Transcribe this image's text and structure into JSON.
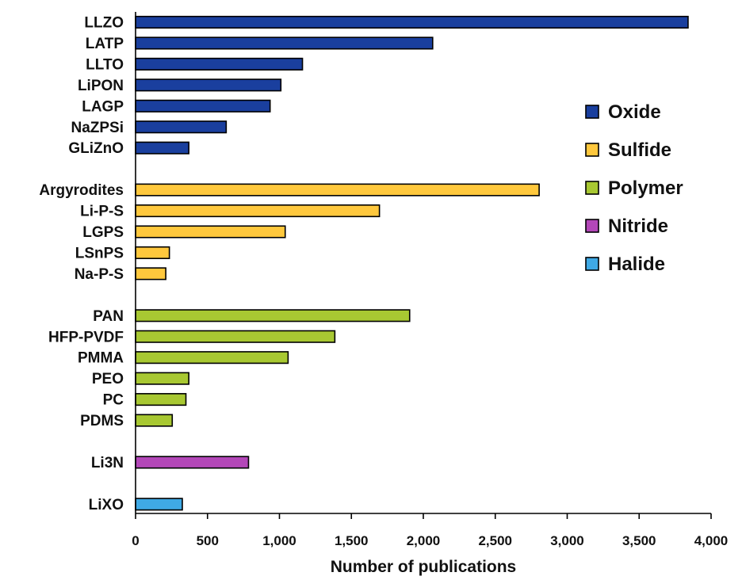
{
  "chart_data": {
    "type": "bar",
    "orientation": "horizontal",
    "xlabel": "Number of publications",
    "xlim": [
      0,
      4000
    ],
    "xticks": [
      0,
      500,
      1000,
      1500,
      2000,
      2500,
      3000,
      3500,
      4000
    ],
    "xtick_labels": [
      "0",
      "500",
      "1,000",
      "1,500",
      "2,000",
      "2,500",
      "3,000",
      "3,500",
      "4,000"
    ],
    "grid": false,
    "legend_position": "right",
    "groups": [
      {
        "name": "Oxide",
        "color": "#1a3f9e",
        "items": [
          {
            "label": "LLZO",
            "value": 3840
          },
          {
            "label": "LATP",
            "value": 2065
          },
          {
            "label": "LLTO",
            "value": 1160
          },
          {
            "label": "LiPON",
            "value": 1010
          },
          {
            "label": "LAGP",
            "value": 935
          },
          {
            "label": "NaZPSi",
            "value": 630
          },
          {
            "label": "GLiZnO",
            "value": 370
          }
        ]
      },
      {
        "name": "Sulfide",
        "color": "#ffc83d",
        "items": [
          {
            "label": "Argyrodites",
            "value": 2805
          },
          {
            "label": "Li-P-S",
            "value": 1695
          },
          {
            "label": "LGPS",
            "value": 1040
          },
          {
            "label": "LSnPS",
            "value": 235
          },
          {
            "label": "Na-P-S",
            "value": 210
          }
        ]
      },
      {
        "name": "Polymer",
        "color": "#a8c832",
        "items": [
          {
            "label": "PAN",
            "value": 1905
          },
          {
            "label": "HFP-PVDF",
            "value": 1385
          },
          {
            "label": "PMMA",
            "value": 1060
          },
          {
            "label": "PEO",
            "value": 370
          },
          {
            "label": "PC",
            "value": 350
          },
          {
            "label": "PDMS",
            "value": 255
          }
        ]
      },
      {
        "name": "Nitride",
        "color": "#b347b8",
        "items": [
          {
            "label": "Li3N",
            "value": 785
          }
        ]
      },
      {
        "name": "Halide",
        "color": "#3fa9e5",
        "items": [
          {
            "label": "LiXO",
            "value": 325
          }
        ]
      }
    ]
  }
}
